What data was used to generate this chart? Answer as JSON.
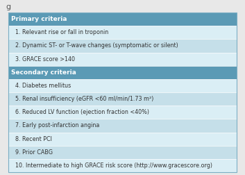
{
  "title": "g",
  "header_color": "#5b9ab5",
  "header_text_color": "#ffffff",
  "row_color_even": "#daeef5",
  "row_color_odd": "#c5dfe9",
  "border_color": "#ffffff",
  "outer_border_color": "#7baec4",
  "background_color": "#e8e8e8",
  "rows": [
    {
      "type": "header",
      "text": "Primary criteria"
    },
    {
      "type": "item",
      "text": "1. Relevant rise or fall in troponin"
    },
    {
      "type": "item",
      "text": "2. Dynamic ST- or T-wave changes (symptomatic or silent)"
    },
    {
      "type": "item",
      "text": "3. GRACE score >140"
    },
    {
      "type": "header",
      "text": "Secondary criteria"
    },
    {
      "type": "item",
      "text": "4. Diabetes mellitus"
    },
    {
      "type": "item",
      "text": "5. Renal insufficiency (eGFR <60 ml/min/1.73 m²)"
    },
    {
      "type": "item",
      "text": "6. Reduced LV function (ejection fraction <40%)"
    },
    {
      "type": "item",
      "text": "7. Early post-infarction angina"
    },
    {
      "type": "item",
      "text": "8. Recent PCI"
    },
    {
      "type": "item",
      "text": "9. Prior CABG"
    },
    {
      "type": "item",
      "text": "10. Intermediate to high GRACE risk score (http://www.gracescore.org)"
    }
  ],
  "font_size_header": 6.5,
  "font_size_item": 5.8,
  "title_fontsize": 8.0,
  "fig_width": 3.53,
  "fig_height": 2.52,
  "dpi": 100
}
